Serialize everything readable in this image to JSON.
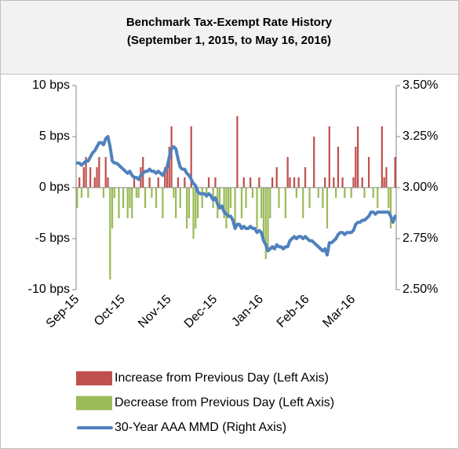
{
  "chart_data": {
    "type": "bar",
    "title": "Benchmark Tax-Exempt Rate History",
    "subtitle": "(September 1, 2015, to May 16, 2016)",
    "categories": [
      "Sep-15",
      null,
      null,
      null,
      null,
      null,
      null,
      null,
      null,
      null,
      null,
      null,
      null,
      null,
      null,
      null,
      null,
      null,
      null,
      null,
      null,
      "Oct-15",
      null,
      null,
      null,
      null,
      null,
      null,
      null,
      null,
      null,
      null,
      null,
      null,
      null,
      null,
      null,
      null,
      null,
      null,
      null,
      null,
      "Nov-15",
      null,
      null,
      null,
      null,
      null,
      null,
      null,
      null,
      null,
      null,
      null,
      null,
      null,
      null,
      null,
      null,
      null,
      null,
      null,
      null,
      "Dec-15",
      null,
      null,
      null,
      null,
      null,
      null,
      null,
      null,
      null,
      null,
      null,
      null,
      null,
      null,
      null,
      null,
      null,
      null,
      null,
      null,
      "Jan-16",
      null,
      null,
      null,
      null,
      null,
      null,
      null,
      null,
      null,
      null,
      null,
      null,
      null,
      null,
      null,
      null,
      null,
      null,
      null,
      null,
      "Feb-16",
      null,
      null,
      null,
      null,
      null,
      null,
      null,
      null,
      null,
      null,
      null,
      null,
      null,
      null,
      null,
      null,
      null,
      null,
      null,
      null,
      "Mar-16",
      null,
      null,
      null,
      null,
      null,
      null,
      null,
      null,
      null,
      null,
      null,
      null,
      null,
      null,
      null,
      null,
      null,
      null,
      null
    ],
    "series": [
      {
        "name": "Increase from Previous Day (Left Axis)",
        "type": "bar",
        "color": "#c0504d",
        "values": [
          null,
          1,
          null,
          2,
          3,
          null,
          2,
          null,
          1,
          2,
          3,
          null,
          null,
          3,
          1,
          null,
          null,
          null,
          null,
          null,
          null,
          null,
          null,
          null,
          null,
          null,
          1,
          null,
          null,
          2,
          3,
          null,
          null,
          1,
          null,
          null,
          null,
          1,
          null,
          null,
          2,
          2,
          4,
          6,
          null,
          null,
          1,
          null,
          null,
          1,
          null,
          null,
          6,
          null,
          null,
          null,
          null,
          null,
          null,
          null,
          1,
          null,
          null,
          1,
          null,
          null,
          null,
          null,
          null,
          null,
          null,
          null,
          null,
          7,
          null,
          null,
          1,
          null,
          null,
          1,
          null,
          null,
          null,
          1,
          null,
          null,
          null,
          null,
          null,
          1,
          null,
          2,
          null,
          null,
          null,
          null,
          3,
          1,
          null,
          1,
          null,
          1,
          null,
          null,
          2,
          null,
          null,
          null,
          5,
          null,
          null,
          null,
          null,
          1,
          null,
          6,
          null,
          1,
          null,
          4,
          null,
          1,
          null,
          null,
          null,
          null,
          1,
          4,
          6,
          null,
          1,
          null,
          null,
          3,
          null,
          null,
          null,
          null,
          null,
          6,
          1,
          2,
          null,
          null,
          null,
          3
        ]
      },
      {
        "name": "Decrease from Previous Day (Left Axis)",
        "type": "bar",
        "color": "#9bbb59",
        "values": [
          -2,
          null,
          -1,
          null,
          null,
          -1,
          null,
          null,
          null,
          null,
          null,
          null,
          -1,
          null,
          null,
          -9,
          -4,
          -1,
          null,
          -3,
          null,
          -2,
          null,
          -3,
          -2,
          -3,
          null,
          -1,
          -1,
          null,
          null,
          -2,
          null,
          null,
          -1,
          null,
          -2,
          null,
          null,
          -3,
          null,
          null,
          null,
          null,
          -1,
          -3,
          null,
          -2,
          null,
          null,
          -4,
          -3,
          null,
          -5,
          -4,
          -3,
          null,
          -2,
          null,
          -1,
          null,
          null,
          -2,
          null,
          -3,
          -2,
          null,
          -3,
          -4,
          -3,
          -2,
          null,
          -4,
          null,
          null,
          -3,
          null,
          -2,
          null,
          null,
          -1,
          null,
          -4,
          null,
          -3,
          -5,
          -7,
          -6,
          -3,
          null,
          null,
          null,
          -2,
          null,
          null,
          -3,
          null,
          null,
          null,
          null,
          -1,
          null,
          null,
          -3,
          null,
          null,
          -2,
          null,
          null,
          null,
          -1,
          null,
          -2,
          null,
          -4,
          null,
          null,
          null,
          -1,
          null,
          null,
          null,
          -1,
          null,
          null,
          -1,
          null,
          null,
          null,
          null,
          null,
          -1,
          null,
          null,
          null,
          -1,
          null,
          -2,
          null,
          null,
          null,
          null,
          -2,
          -4,
          null,
          null
        ]
      },
      {
        "name": "30-Year AAA MMD (Right Axis)",
        "type": "line",
        "axis": "y2",
        "color": "#4f81bd",
        "values": [
          3.12,
          3.12,
          3.11,
          3.12,
          3.13,
          3.13,
          3.15,
          3.17,
          3.18,
          3.2,
          3.22,
          3.22,
          3.21,
          3.24,
          3.25,
          3.2,
          3.13,
          3.12,
          3.12,
          3.11,
          3.1,
          3.09,
          3.08,
          3.07,
          3.08,
          3.06,
          3.05,
          3.05,
          3.04,
          3.06,
          3.07,
          3.08,
          3.08,
          3.09,
          3.08,
          3.08,
          3.07,
          3.08,
          3.07,
          3.06,
          3.08,
          3.1,
          3.15,
          3.19,
          3.2,
          3.19,
          3.14,
          3.1,
          3.09,
          3.09,
          3.07,
          3.06,
          3.04,
          3.02,
          3.01,
          2.98,
          2.97,
          2.97,
          2.97,
          2.96,
          2.97,
          2.96,
          2.94,
          2.95,
          2.92,
          2.9,
          2.91,
          2.88,
          2.87,
          2.86,
          2.86,
          2.84,
          2.8,
          2.82,
          2.82,
          2.8,
          2.81,
          2.8,
          2.8,
          2.81,
          2.8,
          2.8,
          2.78,
          2.79,
          2.78,
          2.74,
          2.72,
          2.69,
          2.7,
          2.71,
          2.7,
          2.72,
          2.71,
          2.71,
          2.7,
          2.71,
          2.71,
          2.74,
          2.75,
          2.76,
          2.75,
          2.76,
          2.76,
          2.75,
          2.76,
          2.75,
          2.74,
          2.74,
          2.73,
          2.72,
          2.71,
          2.7,
          2.69,
          2.7,
          2.67,
          2.73,
          2.73,
          2.74,
          2.75,
          2.77,
          2.78,
          2.78,
          2.77,
          2.78,
          2.78,
          2.78,
          2.79,
          2.82,
          2.83,
          2.83,
          2.84,
          2.84,
          2.85,
          2.86,
          2.88,
          2.88,
          2.87,
          2.88,
          2.88,
          2.88,
          2.88,
          2.88,
          2.88,
          2.86,
          2.83,
          2.86
        ]
      }
    ],
    "ylim": [
      -10,
      10
    ],
    "yticks": [
      {
        "value": -10,
        "label": "-10 bps"
      },
      {
        "value": -5,
        "label": "-5 bps"
      },
      {
        "value": 0,
        "label": "0 bps"
      },
      {
        "value": 5,
        "label": "5 bps"
      },
      {
        "value": 10,
        "label": "10 bps"
      }
    ],
    "y2lim": [
      2.5,
      3.5
    ],
    "y2ticks": [
      {
        "value": 2.5,
        "label": "2.50%"
      },
      {
        "value": 2.75,
        "label": "2.75%"
      },
      {
        "value": 3.0,
        "label": "3.00%"
      },
      {
        "value": 3.25,
        "label": "3.25%"
      },
      {
        "value": 3.5,
        "label": "3.50%"
      }
    ],
    "grid": false,
    "legend": "bottom"
  }
}
